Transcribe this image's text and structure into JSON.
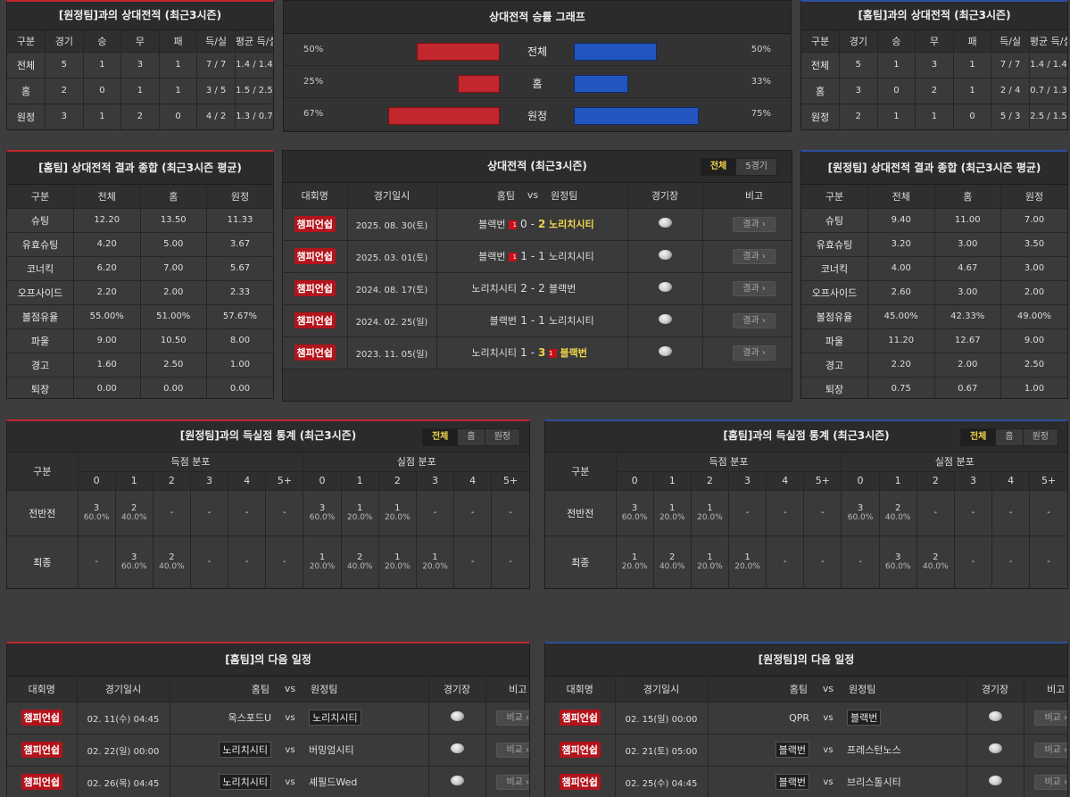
{
  "h2h_tbl": {
    "headers": [
      "구분",
      "경기",
      "승",
      "무",
      "패",
      "득/실",
      "평균 득/실"
    ],
    "row_labels": [
      "전체",
      "홈",
      "원정"
    ]
  },
  "h2h_away": {
    "title": "[원정팀]과의 상대전적 (최근3시즌)",
    "rows": [
      [
        "5",
        "1",
        "3",
        "1",
        "7 / 7",
        "1.4 / 1.4"
      ],
      [
        "2",
        "0",
        "1",
        "1",
        "3 / 5",
        "1.5 / 2.5"
      ],
      [
        "3",
        "1",
        "2",
        "0",
        "4 / 2",
        "1.3 / 0.7"
      ]
    ]
  },
  "h2h_home": {
    "title": "[홈팀]과의 상대전적 (최근3시즌)",
    "rows": [
      [
        "5",
        "1",
        "3",
        "1",
        "7 / 7",
        "1.4 / 1.4"
      ],
      [
        "3",
        "0",
        "2",
        "1",
        "2 / 4",
        "0.7 / 1.3"
      ],
      [
        "2",
        "1",
        "1",
        "0",
        "5 / 3",
        "2.5 / 1.5"
      ]
    ]
  },
  "win_graph": {
    "title": "상대전적 승률 그래프",
    "rows": [
      {
        "label": "전체",
        "left": "50%",
        "right": "50%",
        "left_value": 50,
        "right_value": 50
      },
      {
        "label": "홈",
        "left": "25%",
        "right": "33%",
        "left_value": 25,
        "right_value": 33
      },
      {
        "label": "원정",
        "left": "67%",
        "right": "75%",
        "left_value": 67,
        "right_value": 75
      }
    ]
  },
  "summary_tbl": {
    "headers": [
      "구분",
      "전체",
      "홈",
      "원정"
    ],
    "row_labels": [
      "슈팅",
      "유효슈팅",
      "코너킥",
      "오프사이드",
      "볼점유율",
      "파울",
      "경고",
      "퇴장"
    ]
  },
  "home_summary": {
    "title": "[홈팀] 상대전적 결과 종합 (최근3시즌 평균)",
    "rows": [
      [
        "12.20",
        "13.50",
        "11.33"
      ],
      [
        "4.20",
        "5.00",
        "3.67"
      ],
      [
        "6.20",
        "7.00",
        "5.67"
      ],
      [
        "2.20",
        "2.00",
        "2.33"
      ],
      [
        "55.00%",
        "51.00%",
        "57.67%"
      ],
      [
        "9.00",
        "10.50",
        "8.00"
      ],
      [
        "1.60",
        "2.50",
        "1.00"
      ],
      [
        "0.00",
        "0.00",
        "0.00"
      ]
    ]
  },
  "away_summary": {
    "title": "[원정팀] 상대전적 결과 종합 (최근3시즌 평균)",
    "rows": [
      [
        "9.40",
        "11.00",
        "7.00"
      ],
      [
        "3.20",
        "3.00",
        "3.50"
      ],
      [
        "4.00",
        "4.67",
        "3.00"
      ],
      [
        "2.60",
        "3.00",
        "2.00"
      ],
      [
        "45.00%",
        "42.33%",
        "49.00%"
      ],
      [
        "11.20",
        "12.67",
        "9.00"
      ],
      [
        "2.20",
        "2.00",
        "2.50"
      ],
      [
        "0.75",
        "0.67",
        "1.00"
      ]
    ]
  },
  "h2h_matches": {
    "title": "상대전적 (최근3시즌)",
    "tabs": [
      "전체",
      "5경기"
    ],
    "headers": {
      "comp": "대회명",
      "date": "경기일시",
      "home": "홈팀",
      "vs": "vs",
      "away": "원정팀",
      "venue": "경기장",
      "note": "비고"
    },
    "result_label": "결과 ›",
    "rows": [
      {
        "comp": "챔피언쉽",
        "date": "2025. 08. 30(토)",
        "home": "블랙번",
        "home_card": "1",
        "score_h": "0",
        "dash": "-",
        "score_a": "2",
        "away": "노리치시티",
        "away_card": "",
        "winner": "away"
      },
      {
        "comp": "챔피언쉽",
        "date": "2025. 03. 01(토)",
        "home": "블랙번",
        "home_card": "1",
        "score_h": "1",
        "dash": "-",
        "score_a": "1",
        "away": "노리치시티",
        "away_card": "",
        "winner": ""
      },
      {
        "comp": "챔피언쉽",
        "date": "2024. 08. 17(토)",
        "home": "노리치시티",
        "home_card": "",
        "score_h": "2",
        "dash": "-",
        "score_a": "2",
        "away": "블랙번",
        "away_card": "",
        "winner": ""
      },
      {
        "comp": "챔피언쉽",
        "date": "2024. 02. 25(일)",
        "home": "블랙번",
        "home_card": "",
        "score_h": "1",
        "dash": "-",
        "score_a": "1",
        "away": "노리치시티",
        "away_card": "",
        "winner": ""
      },
      {
        "comp": "챔피언쉽",
        "date": "2023. 11. 05(일)",
        "home": "노리치시티",
        "home_card": "",
        "score_h": "1",
        "dash": "-",
        "score_a": "3",
        "away": "블랙번",
        "away_card": "1",
        "winner": "away"
      }
    ]
  },
  "goal_tbl": {
    "col_label": "구분",
    "scored": "득점 분포",
    "conceded": "실점 분포",
    "cols": [
      "0",
      "1",
      "2",
      "3",
      "4",
      "5+"
    ],
    "row_labels": [
      "전반전",
      "최종"
    ],
    "tabs": [
      "전체",
      "홈",
      "원정"
    ]
  },
  "goal_away": {
    "title": "[원정팀]과의 득실점 통계 (최근3시즌)",
    "rows": [
      [
        [
          "3",
          "60.0%"
        ],
        [
          "2",
          "40.0%"
        ],
        [
          "-",
          ""
        ],
        [
          "-",
          ""
        ],
        [
          "-",
          ""
        ],
        [
          "-",
          ""
        ],
        [
          "3",
          "60.0%"
        ],
        [
          "1",
          "20.0%"
        ],
        [
          "1",
          "20.0%"
        ],
        [
          "-",
          ""
        ],
        [
          "-",
          ""
        ],
        [
          "-",
          ""
        ]
      ],
      [
        [
          "-",
          ""
        ],
        [
          "3",
          "60.0%"
        ],
        [
          "2",
          "40.0%"
        ],
        [
          "-",
          ""
        ],
        [
          "-",
          ""
        ],
        [
          "-",
          ""
        ],
        [
          "1",
          "20.0%"
        ],
        [
          "2",
          "40.0%"
        ],
        [
          "1",
          "20.0%"
        ],
        [
          "1",
          "20.0%"
        ],
        [
          "-",
          ""
        ],
        [
          "-",
          ""
        ]
      ]
    ]
  },
  "goal_home": {
    "title": "[홈팀]과의 득실점 통계 (최근3시즌)",
    "rows": [
      [
        [
          "3",
          "60.0%"
        ],
        [
          "1",
          "20.0%"
        ],
        [
          "1",
          "20.0%"
        ],
        [
          "-",
          ""
        ],
        [
          "-",
          ""
        ],
        [
          "-",
          ""
        ],
        [
          "3",
          "60.0%"
        ],
        [
          "2",
          "40.0%"
        ],
        [
          "-",
          ""
        ],
        [
          "-",
          ""
        ],
        [
          "-",
          ""
        ],
        [
          "-",
          ""
        ]
      ],
      [
        [
          "1",
          "20.0%"
        ],
        [
          "2",
          "40.0%"
        ],
        [
          "1",
          "20.0%"
        ],
        [
          "1",
          "20.0%"
        ],
        [
          "-",
          ""
        ],
        [
          "-",
          ""
        ],
        [
          "-",
          ""
        ],
        [
          "3",
          "60.0%"
        ],
        [
          "2",
          "40.0%"
        ],
        [
          "-",
          ""
        ],
        [
          "-",
          ""
        ],
        [
          "-",
          ""
        ]
      ]
    ]
  },
  "next_tbl": {
    "headers": {
      "comp": "대회명",
      "date": "경기일시",
      "home": "홈팀",
      "vs": "vs",
      "away": "원정팀",
      "venue": "경기장",
      "note": "비고"
    },
    "btn": "비교 ›"
  },
  "next_home": {
    "title": "[홈팀]의 다음 일정",
    "rows": [
      {
        "comp": "챔피언쉽",
        "date": "02. 11(수) 04:45",
        "home": "옥스포드U",
        "vs": "vs",
        "away": "노리치시티",
        "hl": "away"
      },
      {
        "comp": "챔피언쉽",
        "date": "02. 22(일) 00:00",
        "home": "노리치시티",
        "vs": "vs",
        "away": "버밍엄시티",
        "hl": "home"
      },
      {
        "comp": "챔피언쉽",
        "date": "02. 26(목) 04:45",
        "home": "노리치시티",
        "vs": "vs",
        "away": "셰필드Wed",
        "hl": "home"
      }
    ]
  },
  "next_away": {
    "title": "[원정팀]의 다음 일정",
    "rows": [
      {
        "comp": "챔피언쉽",
        "date": "02. 15(일) 00:00",
        "home": "QPR",
        "vs": "vs",
        "away": "블랙번",
        "hl": "away"
      },
      {
        "comp": "챔피언쉽",
        "date": "02. 21(토) 05:00",
        "home": "블랙번",
        "vs": "vs",
        "away": "프레스턴노스",
        "hl": "home"
      },
      {
        "comp": "챔피언쉽",
        "date": "02. 25(수) 04:45",
        "home": "블랙번",
        "vs": "vs",
        "away": "브리스톨시티",
        "hl": "home"
      }
    ]
  },
  "icons": {
    "venue": "stadium-icon",
    "red_card": "red-card-icon"
  },
  "colors": {
    "home_bar": "#c1272d",
    "away_bar": "#2255c0",
    "highlight": "#f1d54c",
    "competition": "#b3141c"
  }
}
